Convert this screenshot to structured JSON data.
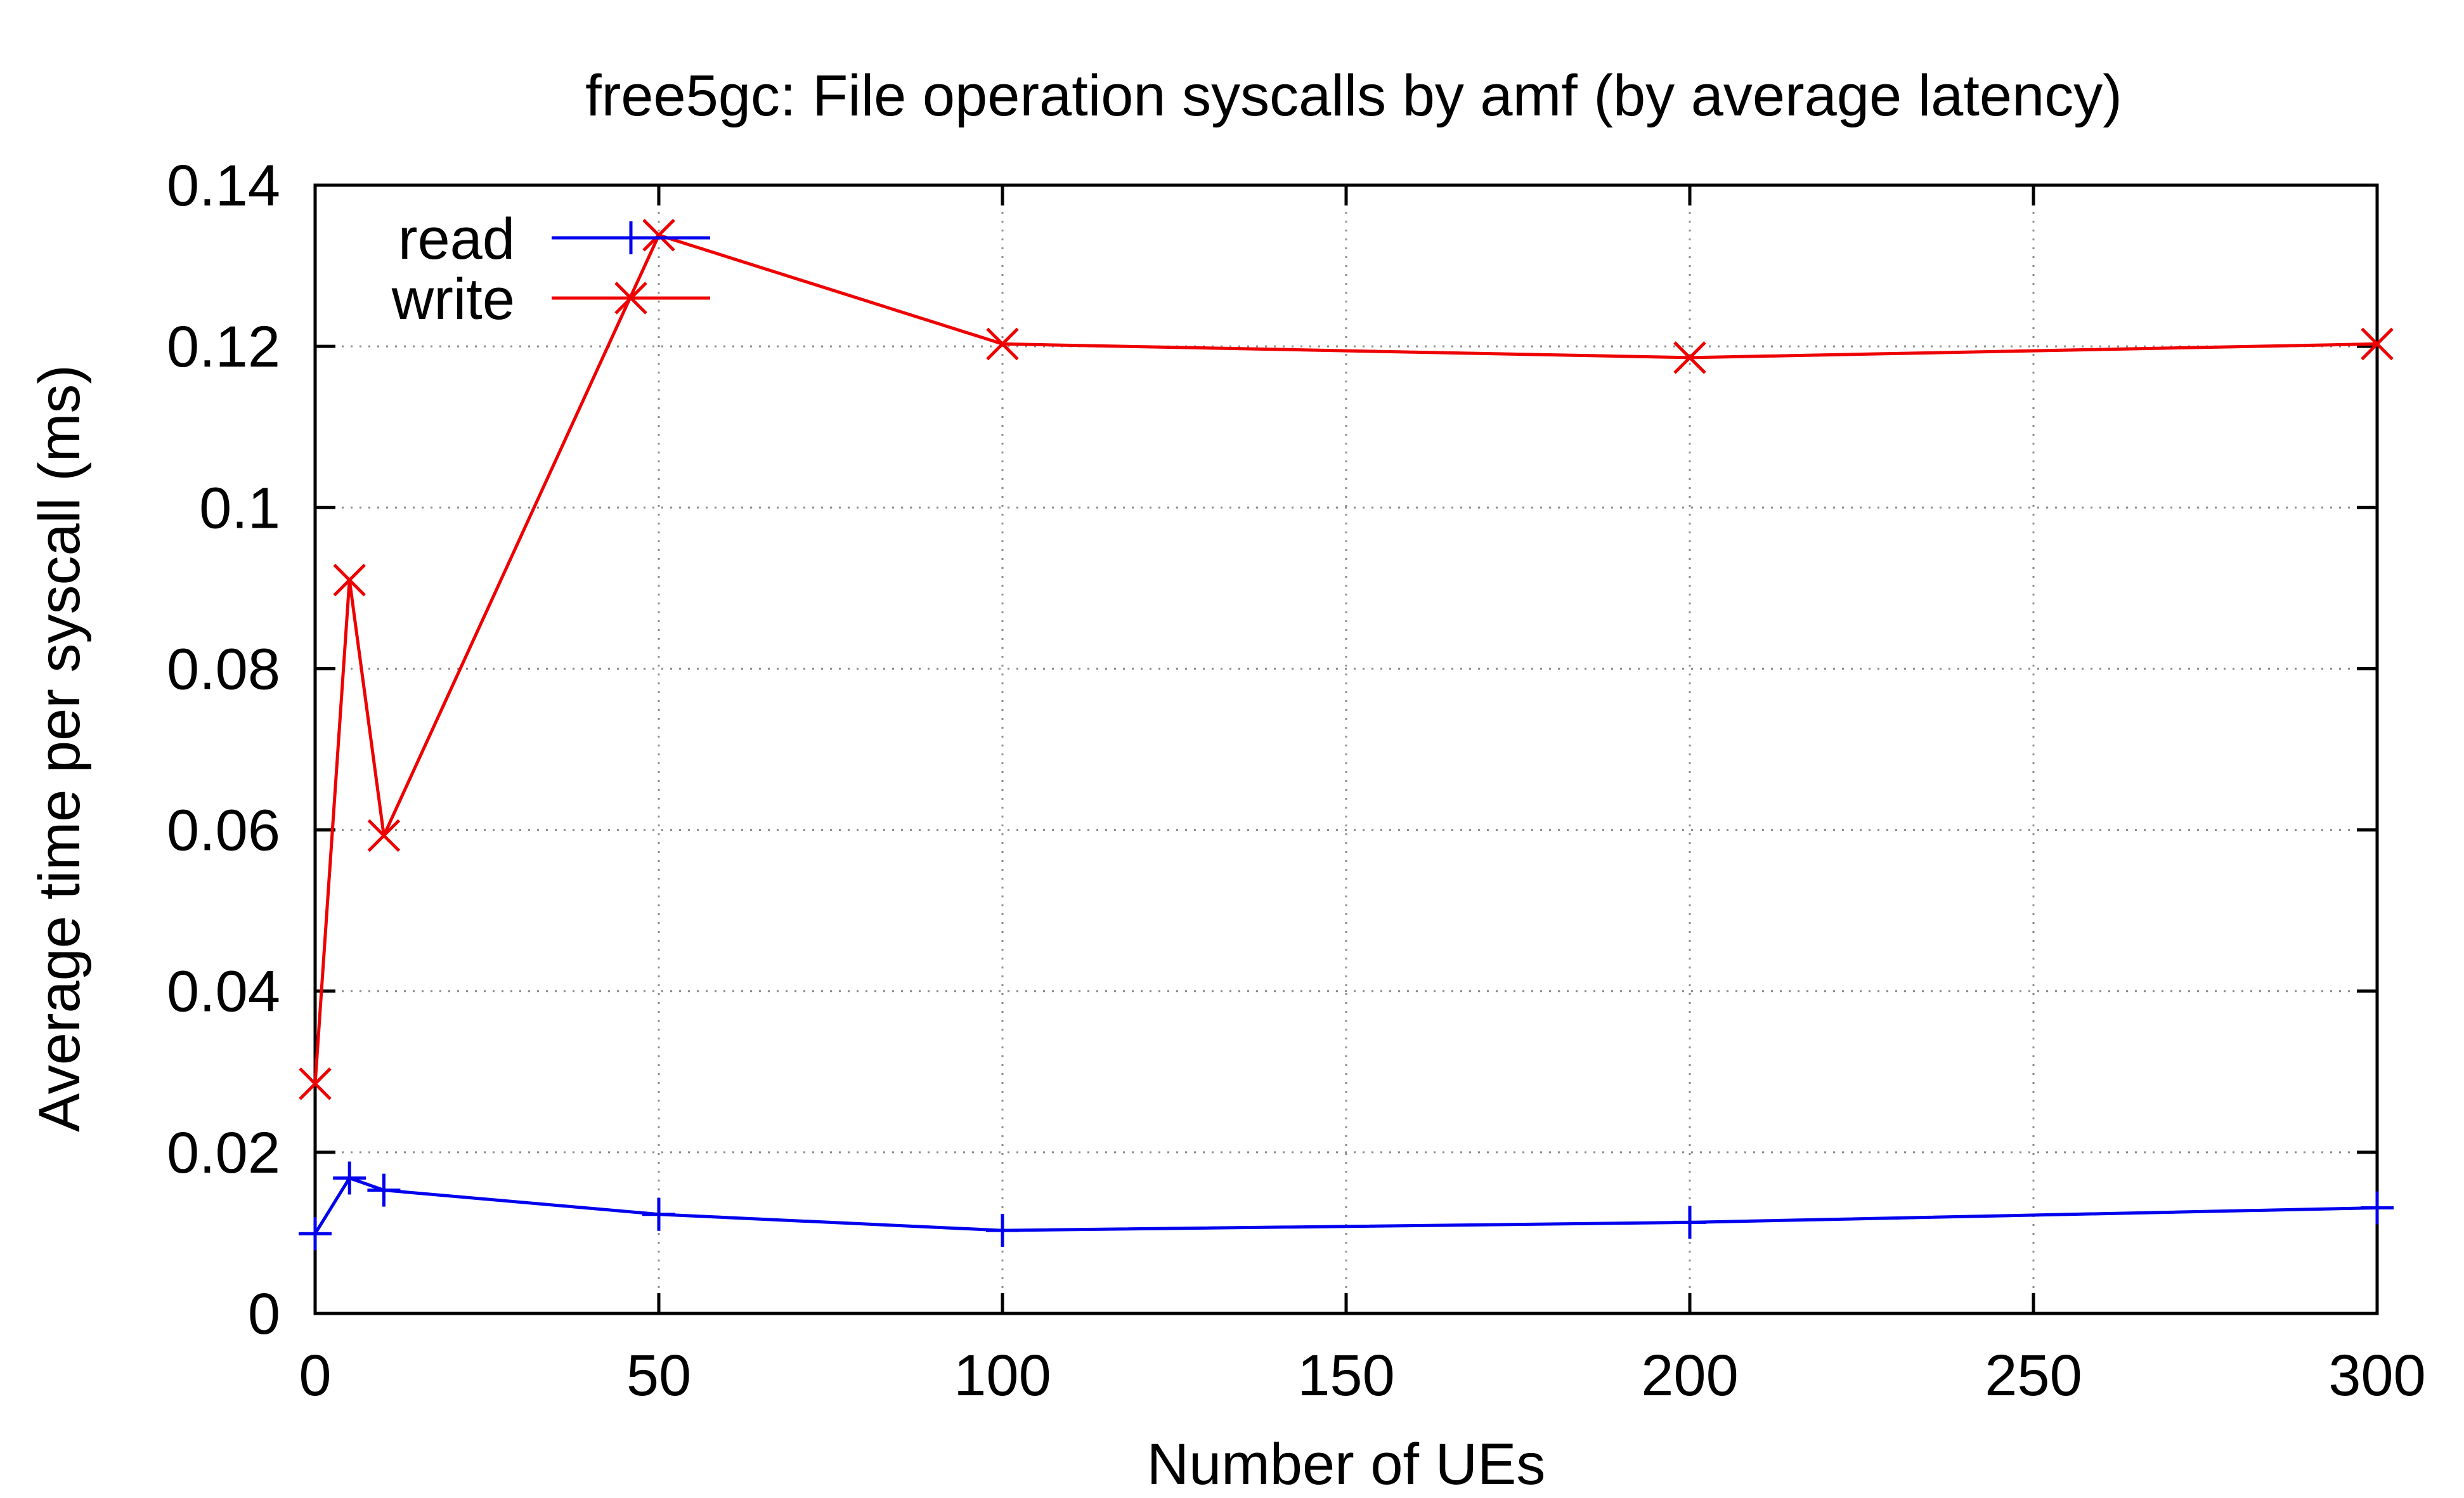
{
  "chart_data": {
    "type": "line",
    "title": "free5gc: File operation syscalls by amf (by average latency)",
    "xlabel": "Number of UEs",
    "ylabel": "Average time per syscall (ms)",
    "xlim": [
      0,
      300
    ],
    "ylim": [
      0,
      0.14
    ],
    "x_ticks": [
      "0",
      "50",
      "100",
      "150",
      "200",
      "250",
      "300"
    ],
    "y_ticks": [
      "0",
      "0.02",
      "0.04",
      "0.06",
      "0.08",
      "0.1",
      "0.12",
      "0.14"
    ],
    "grid": true,
    "legend_position": "top-left",
    "series": [
      {
        "name": "read",
        "color": "#0000ee",
        "marker": "plus",
        "x": [
          0,
          5,
          10,
          50,
          100,
          200,
          300
        ],
        "y": [
          0.0099,
          0.0168,
          0.0153,
          0.0123,
          0.0103,
          0.0113,
          0.0131
        ]
      },
      {
        "name": "write",
        "color": "#ee0000",
        "marker": "cross",
        "x": [
          0,
          5,
          10,
          50,
          100,
          200,
          300
        ],
        "y": [
          0.0285,
          0.091,
          0.0593,
          0.1338,
          0.1203,
          0.1186,
          0.1203
        ]
      }
    ]
  }
}
